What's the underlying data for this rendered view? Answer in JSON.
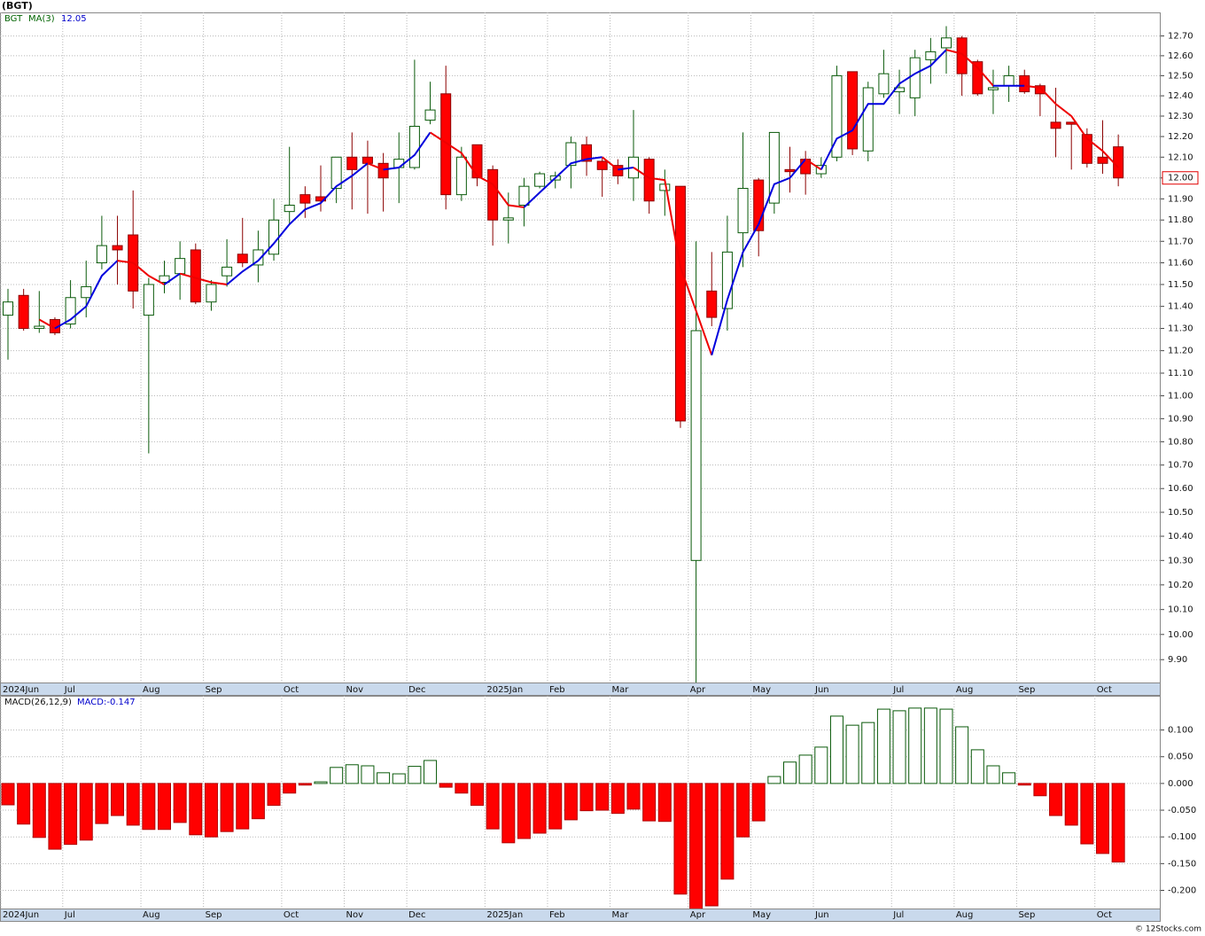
{
  "title": "(BGT)",
  "copyright": "© 12Stocks.com",
  "chart_data": [
    {
      "type": "candlestick",
      "name": "BGT",
      "categories": [
        "2024Jun",
        null,
        null,
        null,
        "Jul",
        null,
        null,
        null,
        null,
        "Aug",
        null,
        null,
        null,
        "Sep",
        null,
        null,
        null,
        null,
        "Oct",
        null,
        null,
        null,
        "Nov",
        null,
        null,
        null,
        "Dec",
        null,
        null,
        null,
        null,
        "2025Jan",
        null,
        null,
        null,
        "Feb",
        null,
        null,
        null,
        "Mar",
        null,
        null,
        null,
        null,
        "Apr",
        null,
        null,
        null,
        "May",
        null,
        null,
        null,
        "Jun",
        null,
        null,
        null,
        null,
        "Jul",
        null,
        null,
        null,
        "Aug",
        null,
        null,
        null,
        "Sep",
        null,
        null,
        null,
        null,
        "Oct",
        null
      ],
      "open": [
        11.36,
        11.45,
        11.3,
        11.34,
        11.32,
        11.44,
        11.6,
        11.68,
        11.73,
        11.36,
        11.51,
        11.55,
        11.66,
        11.42,
        11.54,
        11.64,
        11.59,
        11.64,
        11.84,
        11.92,
        11.91,
        11.95,
        12.1,
        12.1,
        12.07,
        12.05,
        12.05,
        12.28,
        12.41,
        11.92,
        12.16,
        12.04,
        11.8,
        11.87,
        11.96,
        11.99,
        12.06,
        12.16,
        12.08,
        12.06,
        12.0,
        12.09,
        11.94,
        11.96,
        10.3,
        11.47,
        11.39,
        11.74,
        11.99,
        11.88,
        12.04,
        12.09,
        12.02,
        12.1,
        12.52,
        12.13,
        12.41,
        12.42,
        12.39,
        12.58,
        12.64,
        12.69,
        12.57,
        12.43,
        12.45,
        12.5,
        12.45,
        12.27,
        12.27,
        12.21,
        12.1,
        12.15
      ],
      "high": [
        11.48,
        11.48,
        11.47,
        11.35,
        11.52,
        11.61,
        11.82,
        11.82,
        11.94,
        11.53,
        11.61,
        11.7,
        11.69,
        11.52,
        11.71,
        11.81,
        11.75,
        11.9,
        12.15,
        11.96,
        12.06,
        12.1,
        12.22,
        12.18,
        12.12,
        12.22,
        12.58,
        12.47,
        12.55,
        12.15,
        12.16,
        12.06,
        11.93,
        12.0,
        12.03,
        12.03,
        12.2,
        12.2,
        12.1,
        12.09,
        12.33,
        12.1,
        12.04,
        11.96,
        11.7,
        11.65,
        11.82,
        12.22,
        12.0,
        12.22,
        12.15,
        12.13,
        12.1,
        12.55,
        12.52,
        12.47,
        12.63,
        12.53,
        12.63,
        12.69,
        12.75,
        12.7,
        12.58,
        12.53,
        12.55,
        12.53,
        12.46,
        12.44,
        12.27,
        12.24,
        12.28,
        12.21
      ],
      "low": [
        11.16,
        11.29,
        11.28,
        11.27,
        11.3,
        11.35,
        11.57,
        11.5,
        11.39,
        10.75,
        11.46,
        11.43,
        11.41,
        11.38,
        11.49,
        11.58,
        11.51,
        11.61,
        11.78,
        11.81,
        11.84,
        11.88,
        11.85,
        11.83,
        11.84,
        11.88,
        12.04,
        12.26,
        11.85,
        11.89,
        11.96,
        11.68,
        11.69,
        11.77,
        11.95,
        11.95,
        11.95,
        12.01,
        11.91,
        11.97,
        11.89,
        11.83,
        11.82,
        10.86,
        9.81,
        11.31,
        11.29,
        11.58,
        11.63,
        11.83,
        11.93,
        11.92,
        12.0,
        12.08,
        12.11,
        12.08,
        12.39,
        12.31,
        12.3,
        12.46,
        12.51,
        12.4,
        12.4,
        12.31,
        12.37,
        12.41,
        12.3,
        12.1,
        12.04,
        12.05,
        12.02,
        11.96
      ],
      "close": [
        11.42,
        11.3,
        11.31,
        11.28,
        11.44,
        11.49,
        11.68,
        11.66,
        11.47,
        11.5,
        11.54,
        11.62,
        11.42,
        11.5,
        11.58,
        11.6,
        11.66,
        11.8,
        11.87,
        11.88,
        11.89,
        12.1,
        12.04,
        12.07,
        12.0,
        12.09,
        12.25,
        12.33,
        11.92,
        12.1,
        12.0,
        11.8,
        11.81,
        11.96,
        12.02,
        12.01,
        12.17,
        12.08,
        12.04,
        12.01,
        12.1,
        11.89,
        11.97,
        10.89,
        11.29,
        11.35,
        11.65,
        11.95,
        11.75,
        12.22,
        12.03,
        12.02,
        12.06,
        12.5,
        12.14,
        12.44,
        12.51,
        12.44,
        12.59,
        12.62,
        12.69,
        12.51,
        12.41,
        12.44,
        12.5,
        12.42,
        12.41,
        12.24,
        12.26,
        12.07,
        12.07,
        12.0
      ],
      "last_label": "12.00",
      "up_color": "#0a5a0a",
      "down_color": "#ff0000",
      "log_scale": true,
      "grid": true,
      "ylim": [
        9.81,
        12.82
      ],
      "yticks": [
        {
          "value": 9.9,
          "label": "9.90"
        },
        {
          "value": 10,
          "label": "10.00"
        },
        {
          "value": 10.1,
          "label": "10.10"
        },
        {
          "value": 10.2,
          "label": "10.20"
        },
        {
          "value": 10.3,
          "label": "10.30"
        },
        {
          "value": 10.4,
          "label": "10.40"
        },
        {
          "value": 10.5,
          "label": "10.50"
        },
        {
          "value": 10.6,
          "label": "10.60"
        },
        {
          "value": 10.7,
          "label": "10.70"
        },
        {
          "value": 10.8,
          "label": "10.80"
        },
        {
          "value": 10.9,
          "label": "10.90"
        },
        {
          "value": 11,
          "label": "11.00"
        },
        {
          "value": 11.1,
          "label": "11.10"
        },
        {
          "value": 11.2,
          "label": "11.20"
        },
        {
          "value": 11.3,
          "label": "11.30"
        },
        {
          "value": 11.4,
          "label": "11.40"
        },
        {
          "value": 11.5,
          "label": "11.50"
        },
        {
          "value": 11.6,
          "label": "11.60"
        },
        {
          "value": 11.7,
          "label": "11.70"
        },
        {
          "value": 11.8,
          "label": "11.80"
        },
        {
          "value": 11.9,
          "label": "11.90"
        },
        {
          "value": 12,
          "label": "12.00"
        },
        {
          "value": 12.1,
          "label": "12.10"
        },
        {
          "value": 12.2,
          "label": "12.20"
        },
        {
          "value": 12.3,
          "label": "12.30"
        },
        {
          "value": 12.4,
          "label": "12.40"
        },
        {
          "value": 12.5,
          "label": "12.50"
        },
        {
          "value": 12.6,
          "label": "12.60"
        },
        {
          "value": 12.7,
          "label": "12.70"
        }
      ],
      "overlay": {
        "name": "MA(3)",
        "last_label": "12.05",
        "up_color": "#0000dd",
        "down_color": "#ee0000",
        "values": [
          null,
          null,
          11.34,
          11.3,
          11.34,
          11.4,
          11.54,
          11.61,
          11.6,
          11.54,
          11.5,
          11.55,
          11.53,
          11.51,
          11.5,
          11.56,
          11.61,
          11.69,
          11.78,
          11.85,
          11.88,
          11.96,
          12.01,
          12.07,
          12.04,
          12.05,
          12.11,
          12.22,
          12.17,
          12.12,
          12.01,
          11.97,
          11.87,
          11.86,
          11.93,
          12.0,
          12.07,
          12.09,
          12.1,
          12.04,
          12.05,
          12.0,
          11.99,
          11.58,
          11.38,
          11.18,
          11.43,
          11.65,
          11.78,
          11.97,
          12.0,
          12.09,
          12.04,
          12.19,
          12.23,
          12.36,
          12.36,
          12.46,
          12.51,
          12.55,
          12.63,
          12.61,
          12.54,
          12.45,
          12.45,
          12.45,
          12.44,
          12.36,
          12.3,
          12.19,
          12.13,
          12.05
        ]
      }
    },
    {
      "type": "bar",
      "name": "MACD(26,12,9)",
      "last_label": "MACD:-0.147",
      "categories": [
        "2024Jun",
        null,
        null,
        null,
        "Jul",
        null,
        null,
        null,
        null,
        "Aug",
        null,
        null,
        null,
        "Sep",
        null,
        null,
        null,
        null,
        "Oct",
        null,
        null,
        null,
        "Nov",
        null,
        null,
        null,
        "Dec",
        null,
        null,
        null,
        null,
        "2025Jan",
        null,
        null,
        null,
        "Feb",
        null,
        null,
        null,
        "Mar",
        null,
        null,
        null,
        null,
        "Apr",
        null,
        null,
        null,
        "May",
        null,
        null,
        null,
        "Jun",
        null,
        null,
        null,
        null,
        "Jul",
        null,
        null,
        null,
        "Aug",
        null,
        null,
        null,
        "Sep",
        null,
        null,
        null,
        null,
        "Oct",
        null
      ],
      "values": [
        -0.04,
        -0.076,
        -0.101,
        -0.123,
        -0.114,
        -0.106,
        -0.075,
        -0.06,
        -0.078,
        -0.086,
        -0.086,
        -0.073,
        -0.096,
        -0.1,
        -0.09,
        -0.085,
        -0.066,
        -0.041,
        -0.018,
        -0.003,
        0.003,
        0.03,
        0.035,
        0.033,
        0.02,
        0.018,
        0.032,
        0.043,
        -0.007,
        -0.018,
        -0.041,
        -0.085,
        -0.111,
        -0.103,
        -0.093,
        -0.085,
        -0.068,
        -0.051,
        -0.05,
        -0.056,
        -0.048,
        -0.07,
        -0.071,
        -0.207,
        -0.242,
        -0.229,
        -0.179,
        -0.1,
        -0.07,
        0.013,
        0.04,
        0.053,
        0.068,
        0.126,
        0.109,
        0.114,
        0.139,
        0.136,
        0.141,
        0.141,
        0.139,
        0.106,
        0.063,
        0.033,
        0.02,
        -0.003,
        -0.023,
        -0.06,
        -0.078,
        -0.113,
        -0.131,
        -0.147
      ],
      "up_color": "#0a5a0a",
      "down_color": "#ff0000",
      "grid": true,
      "ylim": [
        -0.234,
        0.164
      ],
      "yticks": [
        {
          "value": 0.1,
          "label": "0.100"
        },
        {
          "value": 0.05,
          "label": "0.050"
        },
        {
          "value": 0,
          "label": "0.000"
        },
        {
          "value": -0.05,
          "label": "-0.050"
        },
        {
          "value": -0.1,
          "label": "-0.100"
        },
        {
          "value": -0.15,
          "label": "-0.150"
        },
        {
          "value": -0.2,
          "label": "-0.200"
        }
      ]
    }
  ]
}
